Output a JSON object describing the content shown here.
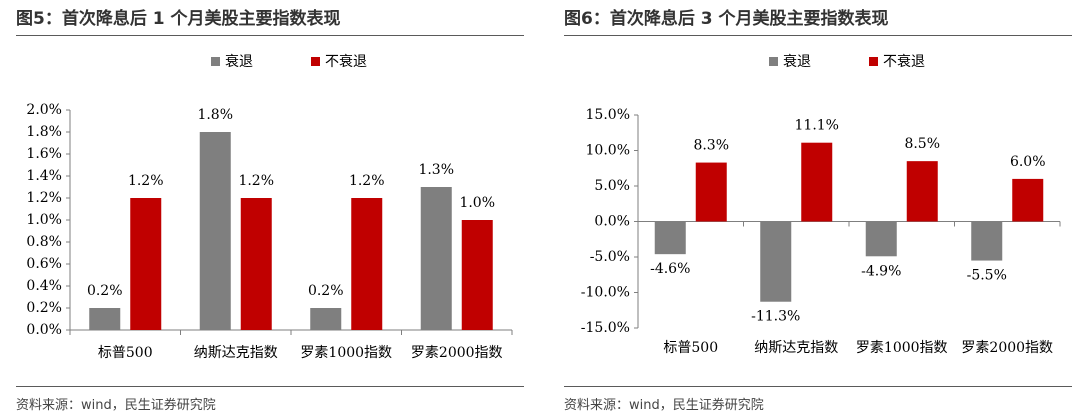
{
  "panels": [
    {
      "title": "图5：首次降息后 1 个月美股主要指数表现",
      "source": "资料来源：wind，民生证券研究院"
    },
    {
      "title": "图6：首次降息后 3 个月美股主要指数表现",
      "source": "资料来源：wind，民生证券研究院"
    }
  ],
  "colors": {
    "recession": "#7f7f7f",
    "no_recession": "#c00000",
    "axis": "#7f7f7f",
    "text": "#000000"
  },
  "chart_data": [
    {
      "type": "bar",
      "title": "首次降息后 1 个月美股主要指数表现",
      "categories": [
        "标普500",
        "纳斯达克指数",
        "罗素1000指数",
        "罗素2000指数"
      ],
      "series": [
        {
          "name": "衰退",
          "values": [
            0.2,
            1.8,
            0.2,
            1.3
          ],
          "labels": [
            "0.2%",
            "1.8%",
            "0.2%",
            "1.3%"
          ]
        },
        {
          "name": "不衰退",
          "values": [
            1.2,
            1.2,
            1.2,
            1.0
          ],
          "labels": [
            "1.2%",
            "1.2%",
            "1.2%",
            "1.0%"
          ]
        }
      ],
      "yticks": [
        "0.0%",
        "0.2%",
        "0.4%",
        "0.6%",
        "0.8%",
        "1.0%",
        "1.2%",
        "1.4%",
        "1.6%",
        "1.8%",
        "2.0%"
      ],
      "ylim": [
        0,
        2.0
      ],
      "ytick_step": 0.2,
      "legend": "top-center",
      "grid": false
    },
    {
      "type": "bar",
      "title": "首次降息后 3 个月美股主要指数表现",
      "categories": [
        "标普500",
        "纳斯达克指数",
        "罗素1000指数",
        "罗素2000指数"
      ],
      "series": [
        {
          "name": "衰退",
          "values": [
            -4.6,
            -11.3,
            -4.9,
            -5.5
          ],
          "labels": [
            "-4.6%",
            "-11.3%",
            "-4.9%",
            "-5.5%"
          ]
        },
        {
          "name": "不衰退",
          "values": [
            8.3,
            11.1,
            8.5,
            6.0
          ],
          "labels": [
            "8.3%",
            "11.1%",
            "8.5%",
            "6.0%"
          ]
        }
      ],
      "yticks": [
        "-15.0%",
        "-10.0%",
        "-5.0%",
        "0.0%",
        "5.0%",
        "10.0%",
        "15.0%"
      ],
      "ylim": [
        -15,
        15
      ],
      "ytick_step": 5,
      "legend": "top-center",
      "grid": false
    }
  ]
}
